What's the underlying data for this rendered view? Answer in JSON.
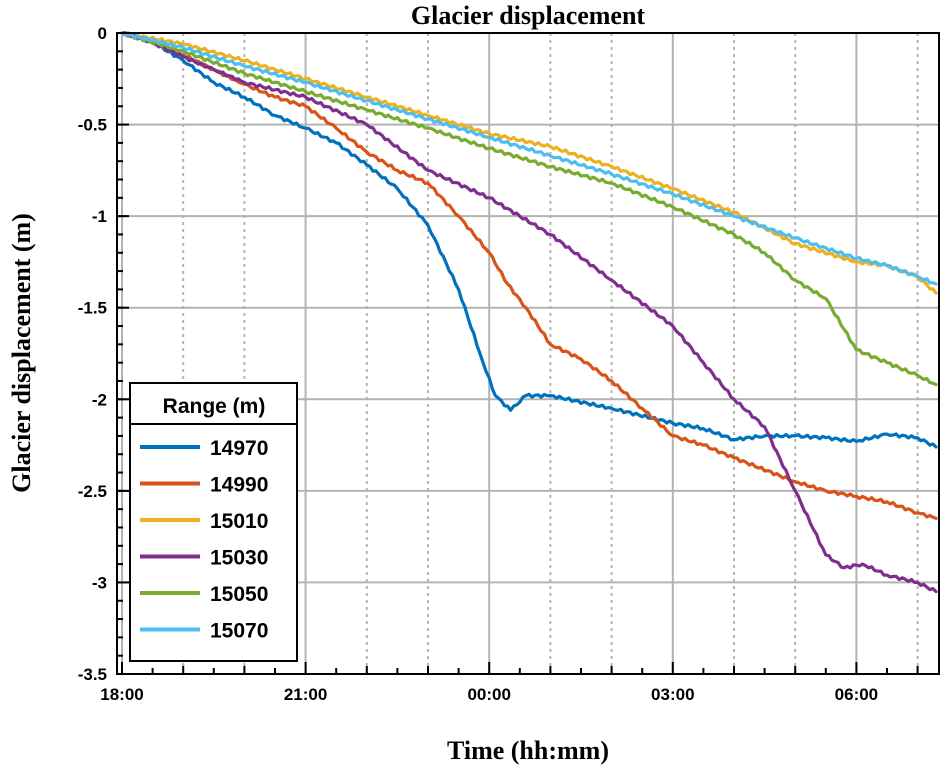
{
  "chart_data": {
    "type": "line",
    "title": "Glacier displacement",
    "xlabel": "Time (hh:mm)",
    "ylabel": "Glacier displacement (m)",
    "x_unit": "hours since 18:00",
    "xlim": [
      0,
      13.3
    ],
    "ylim": [
      -3.5,
      0
    ],
    "xticks": [
      {
        "value": 0,
        "label": "18:00"
      },
      {
        "value": 3,
        "label": "21:00"
      },
      {
        "value": 6,
        "label": "00:00"
      },
      {
        "value": 9,
        "label": "03:00"
      },
      {
        "value": 12,
        "label": "06:00"
      }
    ],
    "yticks": [
      {
        "value": 0,
        "label": "0"
      },
      {
        "value": -0.5,
        "label": "-0.5"
      },
      {
        "value": -1,
        "label": "-1"
      },
      {
        "value": -1.5,
        "label": "-1.5"
      },
      {
        "value": -2,
        "label": "-2"
      },
      {
        "value": -2.5,
        "label": "-2.5"
      },
      {
        "value": -3,
        "label": "-3"
      },
      {
        "value": -3.5,
        "label": "-3.5"
      }
    ],
    "grid": true,
    "legend": {
      "title": "Range (m)",
      "position": "bottom-left"
    },
    "series": [
      {
        "name": "14970",
        "color": "#0072bd",
        "points": [
          [
            0,
            0
          ],
          [
            0.5,
            -0.05
          ],
          [
            1,
            -0.15
          ],
          [
            1.5,
            -0.27
          ],
          [
            2,
            -0.35
          ],
          [
            2.5,
            -0.45
          ],
          [
            3,
            -0.52
          ],
          [
            3.5,
            -0.6
          ],
          [
            4,
            -0.72
          ],
          [
            4.5,
            -0.85
          ],
          [
            5,
            -1.05
          ],
          [
            5.5,
            -1.4
          ],
          [
            5.9,
            -1.8
          ],
          [
            6.1,
            -1.98
          ],
          [
            6.35,
            -2.06
          ],
          [
            6.6,
            -1.98
          ],
          [
            7,
            -1.98
          ],
          [
            8,
            -2.05
          ],
          [
            9,
            -2.13
          ],
          [
            9.5,
            -2.16
          ],
          [
            10,
            -2.22
          ],
          [
            10.5,
            -2.2
          ],
          [
            11,
            -2.2
          ],
          [
            11.5,
            -2.21
          ],
          [
            12,
            -2.23
          ],
          [
            12.5,
            -2.19
          ],
          [
            13,
            -2.21
          ],
          [
            13.3,
            -2.26
          ]
        ]
      },
      {
        "name": "14990",
        "color": "#d95319",
        "points": [
          [
            0,
            0
          ],
          [
            0.5,
            -0.05
          ],
          [
            1,
            -0.12
          ],
          [
            1.5,
            -0.2
          ],
          [
            2,
            -0.28
          ],
          [
            2.5,
            -0.35
          ],
          [
            3,
            -0.4
          ],
          [
            3.5,
            -0.52
          ],
          [
            4,
            -0.65
          ],
          [
            4.5,
            -0.75
          ],
          [
            5,
            -0.82
          ],
          [
            5.5,
            -1.0
          ],
          [
            6,
            -1.2
          ],
          [
            6.3,
            -1.37
          ],
          [
            6.6,
            -1.5
          ],
          [
            7,
            -1.7
          ],
          [
            7.5,
            -1.78
          ],
          [
            8,
            -1.9
          ],
          [
            8.5,
            -2.05
          ],
          [
            9,
            -2.2
          ],
          [
            9.5,
            -2.25
          ],
          [
            10,
            -2.32
          ],
          [
            11,
            -2.45
          ],
          [
            11.5,
            -2.5
          ],
          [
            12,
            -2.53
          ],
          [
            12.5,
            -2.56
          ],
          [
            13,
            -2.62
          ],
          [
            13.3,
            -2.65
          ]
        ]
      },
      {
        "name": "15010",
        "color": "#edb120",
        "points": [
          [
            0,
            0
          ],
          [
            1,
            -0.06
          ],
          [
            2,
            -0.15
          ],
          [
            3,
            -0.25
          ],
          [
            4,
            -0.35
          ],
          [
            5,
            -0.45
          ],
          [
            6,
            -0.55
          ],
          [
            7,
            -0.62
          ],
          [
            8,
            -0.73
          ],
          [
            9,
            -0.85
          ],
          [
            10,
            -0.98
          ],
          [
            11,
            -1.15
          ],
          [
            12,
            -1.25
          ],
          [
            12.5,
            -1.27
          ],
          [
            13,
            -1.33
          ],
          [
            13.3,
            -1.42
          ]
        ]
      },
      {
        "name": "15030",
        "color": "#7e2f8e",
        "points": [
          [
            0,
            0
          ],
          [
            0.5,
            -0.05
          ],
          [
            1,
            -0.13
          ],
          [
            1.5,
            -0.2
          ],
          [
            2,
            -0.27
          ],
          [
            3,
            -0.35
          ],
          [
            4,
            -0.5
          ],
          [
            5,
            -0.75
          ],
          [
            6,
            -0.9
          ],
          [
            7,
            -1.1
          ],
          [
            8,
            -1.35
          ],
          [
            9,
            -1.6
          ],
          [
            9.5,
            -1.8
          ],
          [
            10,
            -2.0
          ],
          [
            10.5,
            -2.15
          ],
          [
            11,
            -2.5
          ],
          [
            11.5,
            -2.85
          ],
          [
            11.8,
            -2.92
          ],
          [
            12.1,
            -2.9
          ],
          [
            12.5,
            -2.96
          ],
          [
            13,
            -3.0
          ],
          [
            13.3,
            -3.05
          ]
        ]
      },
      {
        "name": "15050",
        "color": "#77ac30",
        "points": [
          [
            0,
            0
          ],
          [
            1,
            -0.1
          ],
          [
            2,
            -0.22
          ],
          [
            3,
            -0.32
          ],
          [
            4,
            -0.42
          ],
          [
            5,
            -0.52
          ],
          [
            6,
            -0.63
          ],
          [
            7,
            -0.73
          ],
          [
            8,
            -0.82
          ],
          [
            9,
            -0.95
          ],
          [
            10,
            -1.1
          ],
          [
            10.5,
            -1.2
          ],
          [
            11,
            -1.35
          ],
          [
            11.5,
            -1.45
          ],
          [
            12,
            -1.73
          ],
          [
            12.5,
            -1.8
          ],
          [
            13,
            -1.87
          ],
          [
            13.3,
            -1.92
          ]
        ]
      },
      {
        "name": "15070",
        "color": "#4dbeee",
        "points": [
          [
            0,
            0
          ],
          [
            1,
            -0.08
          ],
          [
            2,
            -0.18
          ],
          [
            3,
            -0.27
          ],
          [
            4,
            -0.37
          ],
          [
            5,
            -0.47
          ],
          [
            6,
            -0.57
          ],
          [
            7,
            -0.67
          ],
          [
            8,
            -0.77
          ],
          [
            9,
            -0.88
          ],
          [
            10,
            -1.0
          ],
          [
            11,
            -1.12
          ],
          [
            12,
            -1.23
          ],
          [
            12.5,
            -1.27
          ],
          [
            13,
            -1.33
          ],
          [
            13.3,
            -1.37
          ]
        ]
      }
    ]
  }
}
